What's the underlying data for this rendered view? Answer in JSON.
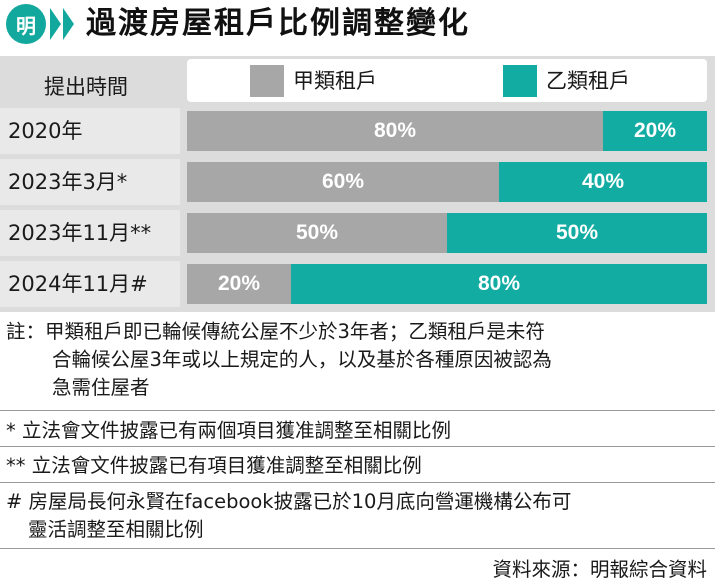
{
  "header": {
    "badge": "明",
    "title": "過渡房屋租戶比例調整變化"
  },
  "chart_data": {
    "type": "bar",
    "stacked": true,
    "orientation": "horizontal",
    "category_header": "提出時間",
    "categories": [
      "2020年",
      "2023年3月*",
      "2023年11月**",
      "2024年11月#"
    ],
    "series": [
      {
        "name": "甲類租戶",
        "color": "#a7a7a7",
        "values": [
          80,
          60,
          50,
          20
        ],
        "labels": [
          "80%",
          "60%",
          "50%",
          "20%"
        ]
      },
      {
        "name": "乙類租戶",
        "color": "#12aca3",
        "values": [
          20,
          40,
          50,
          80
        ],
        "labels": [
          "20%",
          "40%",
          "50%",
          "80%"
        ]
      }
    ],
    "xlim": [
      0,
      100
    ],
    "legend": "top"
  },
  "notes": {
    "note1_line1": "註：甲類租戶即已輪候傳統公屋不少於3年者；乙類租戶是未符",
    "note1_line2": "合輪候公屋3年或以上規定的人，以及基於各種原因被認為",
    "note1_line3": "急需住屋者",
    "note2": "* 立法會文件披露已有兩個項目獲准調整至相關比例",
    "note3": "** 立法會文件披露已有項目獲准調整至相關比例",
    "note4_line1": "# 房屋局長何永賢在facebook披露已於10月底向營運機構公布可",
    "note4_line2": "靈活調整至相關比例"
  },
  "source": "資料來源：明報綜合資料"
}
